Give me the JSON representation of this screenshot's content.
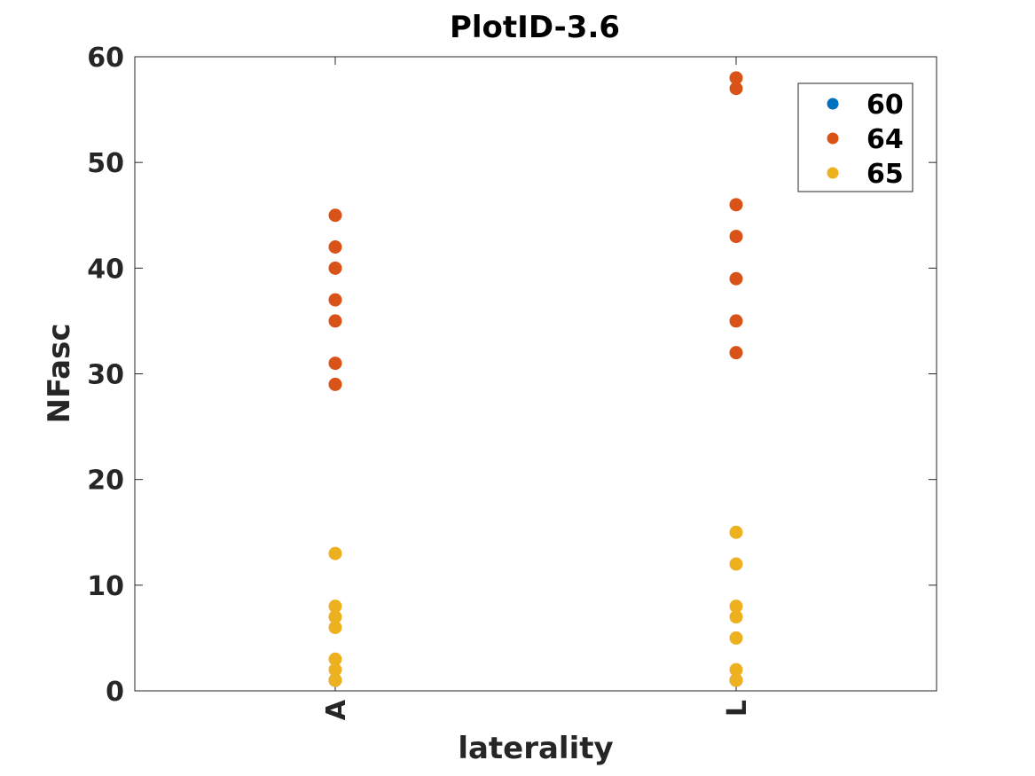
{
  "chart_data": {
    "type": "scatter",
    "title": "PlotID-3.6",
    "xlabel": "laterality",
    "ylabel": "NFasc",
    "categories": [
      "A",
      "L"
    ],
    "ylim": [
      0,
      60
    ],
    "yticks": [
      0,
      10,
      20,
      30,
      40,
      50,
      60
    ],
    "grid": false,
    "legend_position": "top-right",
    "series": [
      {
        "name": "60",
        "color": "#0072BD",
        "points": [
          {
            "x": "A",
            "y": 1
          },
          {
            "x": "L",
            "y": 1
          }
        ]
      },
      {
        "name": "64",
        "color": "#D95319",
        "points": [
          {
            "x": "A",
            "y": 29
          },
          {
            "x": "A",
            "y": 31
          },
          {
            "x": "A",
            "y": 35
          },
          {
            "x": "A",
            "y": 37
          },
          {
            "x": "A",
            "y": 40
          },
          {
            "x": "A",
            "y": 42
          },
          {
            "x": "A",
            "y": 45
          },
          {
            "x": "L",
            "y": 32
          },
          {
            "x": "L",
            "y": 35
          },
          {
            "x": "L",
            "y": 39
          },
          {
            "x": "L",
            "y": 43
          },
          {
            "x": "L",
            "y": 46
          },
          {
            "x": "L",
            "y": 57
          },
          {
            "x": "L",
            "y": 58
          }
        ]
      },
      {
        "name": "65",
        "color": "#EDB120",
        "points": [
          {
            "x": "A",
            "y": 1
          },
          {
            "x": "A",
            "y": 2
          },
          {
            "x": "A",
            "y": 3
          },
          {
            "x": "A",
            "y": 6
          },
          {
            "x": "A",
            "y": 7
          },
          {
            "x": "A",
            "y": 8
          },
          {
            "x": "A",
            "y": 13
          },
          {
            "x": "L",
            "y": 1
          },
          {
            "x": "L",
            "y": 2
          },
          {
            "x": "L",
            "y": 5
          },
          {
            "x": "L",
            "y": 7
          },
          {
            "x": "L",
            "y": 8
          },
          {
            "x": "L",
            "y": 12
          },
          {
            "x": "L",
            "y": 15
          }
        ]
      }
    ]
  }
}
